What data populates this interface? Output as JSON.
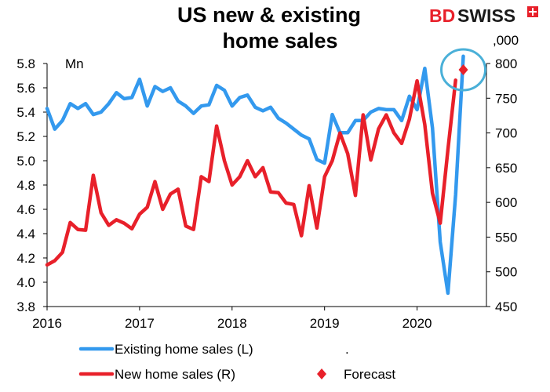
{
  "chart_data": {
    "type": "line",
    "title_line1": "US new & existing",
    "title_line2": "home sales",
    "left_unit": "Mn",
    "right_unit": ",000",
    "brand": {
      "part1": "BD",
      "part2": "SWISS",
      "color1": "#e8202a",
      "color2": "#1a1a1a"
    },
    "x_ticks": [
      "2016",
      "2017",
      "2018",
      "2019",
      "2020"
    ],
    "x_range": [
      2016,
      2020.75
    ],
    "y_left": {
      "range": [
        3.8,
        5.8
      ],
      "ticks": [
        "5.8",
        "5.6",
        "5.4",
        "5.2",
        "5.0",
        "4.8",
        "4.6",
        "4.4",
        "4.2",
        "4.0",
        "3.8"
      ]
    },
    "y_right": {
      "range": [
        450,
        800
      ],
      "ticks": [
        "800",
        "750",
        "700",
        "650",
        "600",
        "550",
        "500",
        "450"
      ]
    },
    "series": [
      {
        "name": "Existing home sales (L)",
        "axis": "left",
        "color": "#3399ee",
        "values": [
          5.43,
          5.26,
          5.33,
          5.47,
          5.43,
          5.47,
          5.38,
          5.4,
          5.47,
          5.56,
          5.51,
          5.52,
          5.67,
          5.45,
          5.61,
          5.57,
          5.6,
          5.49,
          5.45,
          5.39,
          5.45,
          5.46,
          5.62,
          5.58,
          5.45,
          5.52,
          5.54,
          5.44,
          5.41,
          5.44,
          5.35,
          5.31,
          5.26,
          5.21,
          5.18,
          5.01,
          4.98,
          5.38,
          5.23,
          5.23,
          5.33,
          5.33,
          5.4,
          5.43,
          5.42,
          5.42,
          5.33,
          5.53,
          5.42,
          5.76,
          5.27,
          4.33,
          3.91,
          4.72,
          5.86
        ]
      },
      {
        "name": "New home sales (R)",
        "axis": "right",
        "color": "#e8202a",
        "values": [
          510,
          516,
          528,
          571,
          561,
          560,
          639,
          585,
          567,
          575,
          570,
          562,
          583,
          593,
          630,
          590,
          612,
          619,
          566,
          561,
          637,
          630,
          710,
          660,
          625,
          637,
          660,
          637,
          650,
          615,
          614,
          599,
          597,
          552,
          624,
          563,
          637,
          660,
          700,
          670,
          610,
          726,
          661,
          706,
          726,
          700,
          685,
          720,
          775,
          712,
          613,
          570,
          676,
          776
        ]
      },
      {
        "name": "Forecast",
        "axis": "right",
        "color": "#e8202a",
        "marker": "diamond",
        "points": [
          {
            "x": 2020.5,
            "y": 791
          }
        ]
      }
    ],
    "legend": [
      {
        "label": "Existing home sales (L)",
        "kind": "line",
        "color": "#3399ee"
      },
      {
        "label": ".",
        "kind": "text"
      },
      {
        "label": "New home sales (R)",
        "kind": "line",
        "color": "#e8202a"
      },
      {
        "label": "Forecast",
        "kind": "diamond",
        "color": "#e8202a"
      }
    ],
    "highlight_color": "#4ab0d8"
  }
}
